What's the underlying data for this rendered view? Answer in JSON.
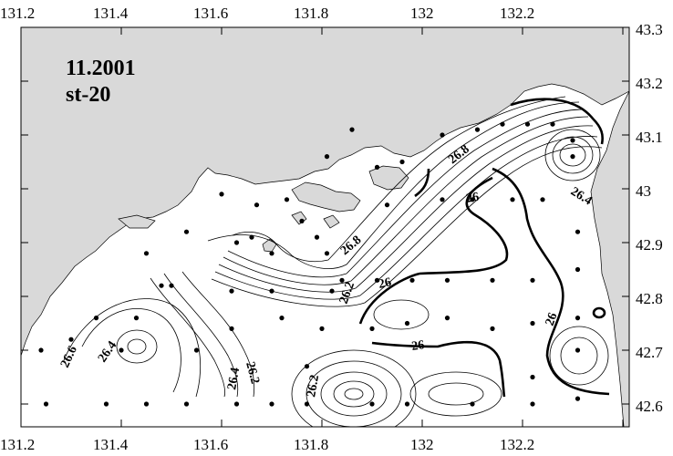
{
  "title": {
    "line1": "11.2001",
    "line2": "st-20"
  },
  "axes": {
    "x_ticks": [
      "131.2",
      "131.4",
      "131.6",
      "131.8",
      "132",
      "132.2"
    ],
    "y_ticks": [
      "43.3",
      "43.2",
      "43.1",
      "43",
      "42.9",
      "42.8",
      "42.7",
      "42.6"
    ]
  },
  "contour_labels": [
    "26.8",
    "26.4",
    "26",
    "26",
    "26",
    "26.8",
    "26.2",
    "26.6",
    "26.4",
    "26.2",
    "26.4",
    "26.2",
    "26",
    "26"
  ],
  "colors": {
    "land": "#d9d9d9",
    "water": "#ffffff",
    "lines": "#000000"
  },
  "stations": [
    [
      131.43,
      42.76
    ],
    [
      131.35,
      42.76
    ],
    [
      131.4,
      42.7
    ],
    [
      131.3,
      42.72
    ],
    [
      131.24,
      42.7
    ],
    [
      131.25,
      42.6
    ],
    [
      131.37,
      42.6
    ],
    [
      131.45,
      42.6
    ],
    [
      131.53,
      42.6
    ],
    [
      131.63,
      42.6
    ],
    [
      131.7,
      42.6
    ],
    [
      131.77,
      42.6
    ],
    [
      131.9,
      42.6
    ],
    [
      131.97,
      42.6
    ],
    [
      132.1,
      42.6
    ],
    [
      132.22,
      42.6
    ],
    [
      132.31,
      42.61
    ],
    [
      132.31,
      42.7
    ],
    [
      132.31,
      42.76
    ],
    [
      132.31,
      42.85
    ],
    [
      132.31,
      42.92
    ],
    [
      132.3,
      43.06
    ],
    [
      132.3,
      43.09
    ],
    [
      132.26,
      43.12
    ],
    [
      132.21,
      43.12
    ],
    [
      132.16,
      43.12
    ],
    [
      132.11,
      43.11
    ],
    [
      132.04,
      43.1
    ],
    [
      131.96,
      43.05
    ],
    [
      131.91,
      43.04
    ],
    [
      131.81,
      43.06
    ],
    [
      131.86,
      43.11
    ],
    [
      131.6,
      42.99
    ],
    [
      131.67,
      42.97
    ],
    [
      131.66,
      42.91
    ],
    [
      131.73,
      42.98
    ],
    [
      131.76,
      42.94
    ],
    [
      131.79,
      42.91
    ],
    [
      131.81,
      42.88
    ],
    [
      131.53,
      42.92
    ],
    [
      131.45,
      42.88
    ],
    [
      131.48,
      42.82
    ],
    [
      131.62,
      42.81
    ],
    [
      131.63,
      42.9
    ],
    [
      131.7,
      42.88
    ],
    [
      131.7,
      42.81
    ],
    [
      131.72,
      42.76
    ],
    [
      131.82,
      42.81
    ],
    [
      131.84,
      42.83
    ],
    [
      131.91,
      42.83
    ],
    [
      131.98,
      42.83
    ],
    [
      132.05,
      42.83
    ],
    [
      132.14,
      42.83
    ],
    [
      132.22,
      42.83
    ],
    [
      132.05,
      42.76
    ],
    [
      132.14,
      42.74
    ],
    [
      132.22,
      42.75
    ],
    [
      132.22,
      42.65
    ],
    [
      131.97,
      42.75
    ],
    [
      131.9,
      42.74
    ],
    [
      131.8,
      42.74
    ],
    [
      131.77,
      42.67
    ],
    [
      131.62,
      42.74
    ],
    [
      131.55,
      42.7
    ],
    [
      132.1,
      42.98
    ],
    [
      132.18,
      42.98
    ],
    [
      132.24,
      42.98
    ],
    [
      132.04,
      42.98
    ],
    [
      131.93,
      42.97
    ],
    [
      131.5,
      42.82
    ]
  ]
}
